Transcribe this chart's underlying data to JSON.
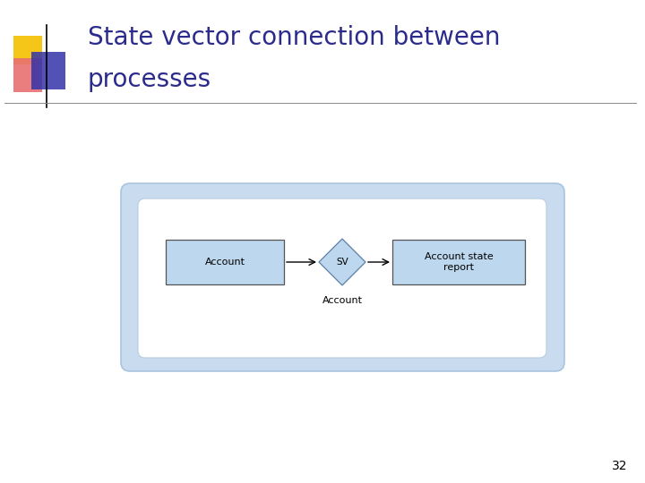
{
  "title_line1": "State vector connection between",
  "title_line2": "processes",
  "title_color": "#2B2B8C",
  "title_fontsize": 20,
  "slide_bg": "#FFFFFF",
  "diagram_bg": "#C9DCEF",
  "inner_bg": "#FFFFFF",
  "box_fill": "#BDD7EE",
  "box_edge": "#4472C4",
  "diamond_fill": "#BDD7EE",
  "diamond_edge": "#5B7FA6",
  "box1_label": "Account",
  "box2_label": "Account state\nreport",
  "diamond_label": "SV",
  "arrow_label": "Account",
  "page_number": "32",
  "page_number_color": "#000000",
  "page_number_fontsize": 10,
  "logo_yellow": "#F5C518",
  "logo_pink": "#E87070",
  "logo_blue": "#3333AA"
}
